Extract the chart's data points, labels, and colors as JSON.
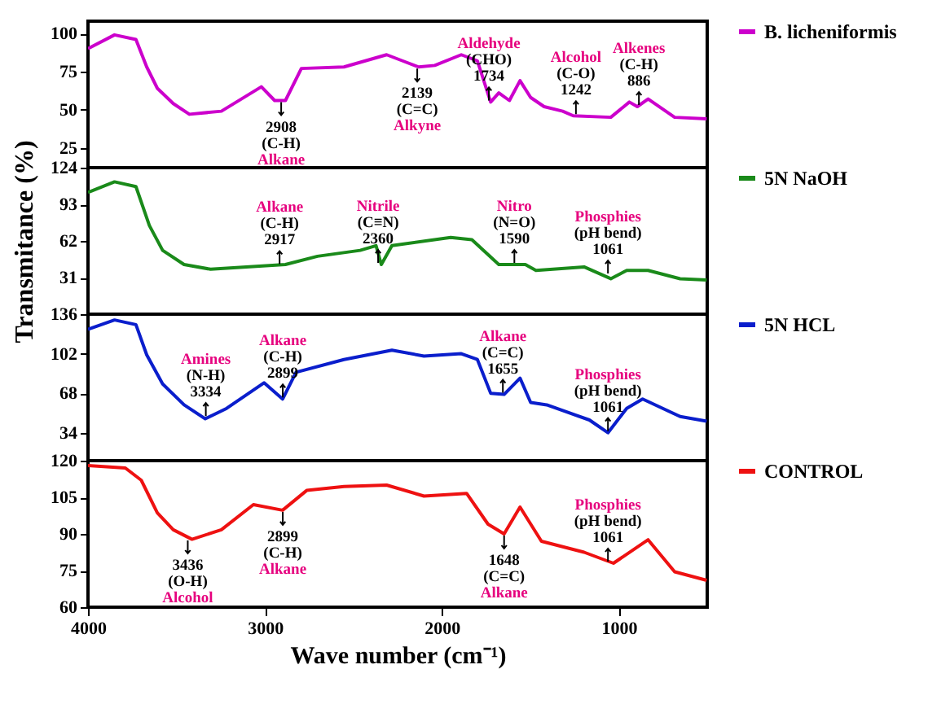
{
  "chart_data": [
    {
      "type": "line",
      "xlim": [
        4000,
        500
      ],
      "xticks": [
        4000,
        3000,
        2000,
        1000
      ],
      "ylim": [
        12,
        108
      ],
      "yticks": [
        25,
        50,
        75,
        100
      ],
      "tick_labels": "y",
      "legend": "right",
      "x": [
        4000,
        3850,
        3729,
        3668,
        3608,
        3518,
        3427,
        3246,
        3020,
        2945,
        2884,
        2794,
        2553,
        2312,
        2222,
        2131,
        2040,
        1890,
        1799,
        1724,
        1678,
        1618,
        1558,
        1498,
        1422,
        1317,
        1257,
        1045,
        940,
        895,
        834,
        684,
        503
      ],
      "series": [
        {
          "name": "B. licheniformis",
          "color": "#cc00cc",
          "values": [
            90,
            99,
            96,
            78,
            64,
            54,
            47,
            49,
            65,
            56,
            56,
            77,
            78,
            86,
            82,
            78,
            79,
            86,
            82,
            55,
            61,
            56,
            69,
            58,
            52,
            49,
            46,
            45,
            55,
            52,
            57,
            45,
            44
          ]
        }
      ],
      "annotations": [
        {
          "text": "2908",
          "x": 2908,
          "y": 56
        },
        "(C-H)",
        "Alkane",
        {
          "text": "2139",
          "x": 2139,
          "y": 78
        },
        "(C=C)",
        "Alkyne",
        {
          "text": "1734",
          "x": 1734,
          "y": 55
        },
        "(CHO)",
        "Aldehyde",
        {
          "text": "1242",
          "x": 1242,
          "y": 46
        },
        "(C-O)",
        "Alcohol",
        {
          "text": "886",
          "x": 886,
          "y": 52
        },
        "(C-H)",
        "Alkenes"
      ]
    },
    {
      "type": "line",
      "xlim": [
        4000,
        500
      ],
      "xticks": [
        4000,
        3000,
        2000,
        1000
      ],
      "ylim": [
        0,
        124
      ],
      "yticks": [
        31,
        62,
        93,
        124
      ],
      "tick_labels": "y",
      "legend": "right",
      "ylabel": "Transmitance (%)",
      "x": [
        4000,
        3850,
        3729,
        3653,
        3578,
        3457,
        3307,
        2884,
        2703,
        2462,
        2372,
        2342,
        2282,
        1950,
        1830,
        1678,
        1528,
        1468,
        1196,
        1045,
        955,
        834,
        653,
        503
      ],
      "series": [
        {
          "name": "5N NaOH",
          "color": "#1a8a1a",
          "values": [
            103,
            112,
            108,
            75,
            54,
            42,
            38,
            42,
            49,
            54,
            58,
            42,
            58,
            65,
            63,
            42,
            42,
            37,
            40,
            30,
            37,
            37,
            30,
            29
          ]
        }
      ],
      "annotations": [
        {
          "text": "2917",
          "x": 2917,
          "y": 41
        },
        "(C-H)",
        "Alkane",
        {
          "text": "2360",
          "x": 2360,
          "y": 42
        },
        "(C≡N)",
        "Nitrile",
        {
          "text": "1590",
          "x": 1590,
          "y": 42
        },
        "(N=O)",
        "Nitro",
        {
          "text": "1061",
          "x": 1061,
          "y": 33
        },
        "(pH bend)",
        "Phosphies"
      ]
    },
    {
      "type": "line",
      "xlim": [
        4000,
        500
      ],
      "xticks": [
        4000,
        3000,
        2000,
        1000
      ],
      "ylim": [
        10,
        136
      ],
      "yticks": [
        34,
        68,
        102,
        136
      ],
      "tick_labels": "y",
      "legend": "right",
      "x": [
        4000,
        3850,
        3729,
        3668,
        3578,
        3457,
        3337,
        3216,
        3005,
        2900,
        2824,
        2553,
        2282,
        2101,
        1890,
        1799,
        1724,
        1648,
        1558,
        1498,
        1407,
        1166,
        1061,
        955,
        865,
        653,
        503
      ],
      "series": [
        {
          "name": "5N HCL",
          "color": "#0a1ecc",
          "values": [
            123,
            131,
            127,
            101,
            76,
            58,
            46,
            55,
            77,
            63,
            86,
            97,
            105,
            100,
            102,
            97,
            68,
            67,
            81,
            60,
            58,
            45,
            34,
            55,
            63,
            48,
            44
          ]
        }
      ],
      "annotations": [
        {
          "text": "3334",
          "x": 3334,
          "y": 47
        },
        "(N-H)",
        "Amines",
        {
          "text": "2899",
          "x": 2899,
          "y": 63
        },
        "(C-H)",
        "Alkane",
        {
          "text": "1655",
          "x": 1655,
          "y": 67
        },
        "(C=C)",
        "Alkane",
        {
          "text": "1061",
          "x": 1061,
          "y": 34
        },
        "(pH bend)",
        "Phosphies"
      ]
    },
    {
      "type": "line",
      "xlim": [
        4000,
        500
      ],
      "xticks": [
        4000,
        3000,
        2000,
        1000
      ],
      "ylim": [
        60,
        120
      ],
      "yticks": [
        60,
        75,
        90,
        105,
        120
      ],
      "legend": "right",
      "xlabel": "Wave number (cm⁻¹)",
      "x": [
        4000,
        3789,
        3699,
        3608,
        3518,
        3412,
        3246,
        3065,
        2900,
        2764,
        2553,
        2312,
        2101,
        1860,
        1739,
        1648,
        1558,
        1437,
        1196,
        1030,
        834,
        684,
        503
      ],
      "series": [
        {
          "name": "CONTROL",
          "color": "#ee1111",
          "values": [
            118,
            117,
            112,
            98.6,
            91.7,
            87.8,
            91.7,
            102,
            99.7,
            107.8,
            109.4,
            110,
            105.5,
            106.6,
            94,
            90,
            101,
            87,
            82.5,
            78,
            87.6,
            74.5,
            71
          ]
        }
      ],
      "annotations": [
        {
          "text": "3436",
          "x": 3436,
          "y": 88
        },
        "(O-H)",
        "Alcohol",
        {
          "text": "2899",
          "x": 2899,
          "y": 99.7
        },
        "(C-H)",
        "Alkane",
        {
          "text": "1648",
          "x": 1648,
          "y": 90
        },
        "(C=C)",
        "Alkane",
        {
          "text": "1061",
          "x": 1061,
          "y": 78
        },
        "(pH bend)",
        "Phosphies"
      ]
    }
  ]
}
